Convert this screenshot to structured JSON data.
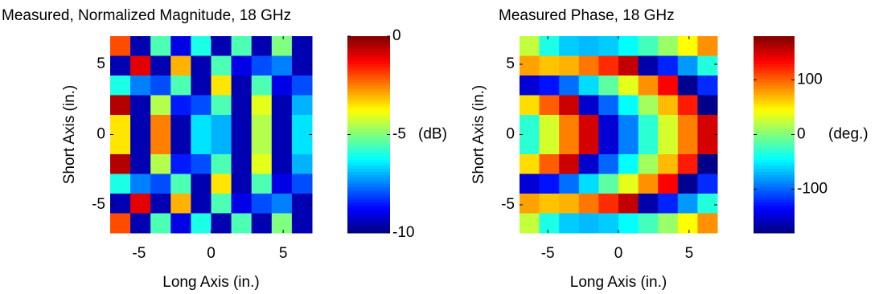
{
  "chart_data": [
    {
      "type": "heatmap",
      "title": "Measured, Normalized Magnitude, 18 GHz",
      "xlabel": "Long Axis (in.)",
      "ylabel": "Short Axis (in.)",
      "x": [
        -6.3,
        -4.9,
        -3.5,
        -2.1,
        -0.7,
        0.7,
        2.1,
        3.5,
        4.9,
        6.3
      ],
      "y": [
        6.3,
        4.9,
        3.5,
        2.1,
        0.7,
        -0.7,
        -2.1,
        -3.5,
        -4.9,
        -6.3
      ],
      "z": [
        [
          -2,
          -9.5,
          -5.5,
          -9,
          -6,
          -9.5,
          -5.5,
          -9.5,
          -5,
          -9.5
        ],
        [
          -9.5,
          -1,
          -9.5,
          -3,
          -9.5,
          -5.5,
          -9,
          -8,
          -7.5,
          -9.5
        ],
        [
          -6,
          -7.5,
          -8,
          -5.5,
          -9.5,
          -3.5,
          -9.5,
          -5.5,
          -9,
          -8
        ],
        [
          -0.5,
          -9.5,
          -4.5,
          -8.5,
          -8,
          -5.5,
          -9.5,
          -4,
          -9.5,
          -7
        ],
        [
          -3.5,
          -9.5,
          -2.5,
          -9.5,
          -6.5,
          -7,
          -9.5,
          -4.5,
          -9.5,
          -6.5
        ],
        [
          -3.5,
          -9.5,
          -2.5,
          -9.5,
          -6.5,
          -7,
          -9.5,
          -4.5,
          -9.5,
          -6.5
        ],
        [
          -0.5,
          -9.5,
          -4.5,
          -8.5,
          -8,
          -5.5,
          -9.5,
          -4,
          -9.5,
          -7
        ],
        [
          -6,
          -7.5,
          -8,
          -5.5,
          -9.5,
          -3.5,
          -9.5,
          -5.5,
          -9,
          -8
        ],
        [
          -9.5,
          -1,
          -9.5,
          -3,
          -9.5,
          -5.5,
          -9,
          -8,
          -7.5,
          -9.5
        ],
        [
          -2,
          -9.5,
          -5.5,
          -9,
          -6,
          -9.5,
          -5.5,
          -9.5,
          -5,
          -9.5
        ]
      ],
      "xlim": [
        -7,
        7
      ],
      "ylim": [
        -7,
        7
      ],
      "xticks": [
        -5,
        0,
        5
      ],
      "yticks": [
        -5,
        0,
        5
      ],
      "colormap": "jet",
      "colorbar": {
        "lim": [
          -10,
          0
        ],
        "ticks": [
          -10,
          -5,
          0
        ],
        "label": "(dB)"
      }
    },
    {
      "type": "heatmap",
      "title": "Measured Phase, 18 GHz",
      "xlabel": "Long Axis (in.)",
      "ylabel": "Short Axis (in.)",
      "x": [
        -6.3,
        -4.9,
        -3.5,
        -2.1,
        -0.7,
        0.7,
        2.1,
        3.5,
        4.9,
        6.3
      ],
      "y": [
        6.3,
        4.9,
        3.5,
        2.1,
        0.7,
        -0.7,
        -2.1,
        -3.5,
        -4.9,
        -6.3
      ],
      "z": [
        [
          24,
          -36,
          -63,
          -69,
          -63,
          -45,
          -21,
          9,
          45,
          84
        ],
        [
          78,
          66,
          72,
          93,
          120,
          156,
          -165,
          -123,
          -81,
          -33
        ],
        [
          -150,
          -129,
          -96,
          -57,
          -12,
          36,
          84,
          135,
          -174,
          -120
        ],
        [
          57,
          102,
          153,
          -153,
          -99,
          -45,
          12,
          69,
          126,
          -177
        ],
        [
          -30,
          30,
          90,
          150,
          -150,
          -90,
          -30,
          30,
          90,
          150
        ],
        [
          -30,
          30,
          90,
          150,
          -150,
          -90,
          -30,
          30,
          90,
          150
        ],
        [
          57,
          102,
          153,
          -153,
          -99,
          -45,
          12,
          69,
          126,
          -177
        ],
        [
          -150,
          -129,
          -96,
          -57,
          -12,
          36,
          84,
          135,
          -174,
          -120
        ],
        [
          78,
          66,
          72,
          93,
          120,
          156,
          -165,
          -123,
          -81,
          -33
        ],
        [
          24,
          -36,
          -63,
          -69,
          -63,
          -45,
          -21,
          9,
          45,
          84
        ]
      ],
      "xlim": [
        -7,
        7
      ],
      "ylim": [
        -7,
        7
      ],
      "xticks": [
        -5,
        0,
        5
      ],
      "yticks": [
        -5,
        0,
        5
      ],
      "colormap": "jet",
      "colorbar": {
        "lim": [
          -180,
          180
        ],
        "ticks": [
          -100,
          0,
          100
        ],
        "label": "(deg.)"
      }
    }
  ]
}
